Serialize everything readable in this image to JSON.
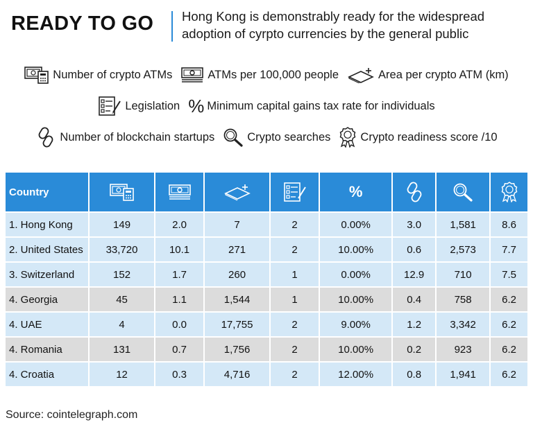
{
  "header": {
    "title": "READY TO GO",
    "subtitle": "Hong Kong is demonstrably ready for the widespread adoption of cyrpto currencies by the general public"
  },
  "legend": {
    "atms": "Number of crypto ATMs",
    "atms_per_100k": "ATMs per 100,000 people",
    "area": "Area per crypto ATM (km)",
    "legislation": "Legislation",
    "tax_symbol": "%",
    "tax": "Minimum capital gains tax rate for individuals",
    "startups": "Number of blockchain startups",
    "searches": "Crypto searches",
    "score": "Crypto readiness score /10"
  },
  "icons": [
    "atm-icon",
    "banknote-icon",
    "area-plane-icon",
    "checklist-icon",
    "percent-icon",
    "chain-link-icon",
    "magnifier-icon",
    "award-ribbon-icon"
  ],
  "colors": {
    "header_blue": "#2a8bd8",
    "row_blue": "#d4e8f7",
    "row_grey": "#dcdcdc"
  },
  "chart_data": {
    "type": "table",
    "columns": [
      "Country",
      "Number of crypto ATMs",
      "ATMs per 100,000 people",
      "Area per crypto ATM (km)",
      "Legislation",
      "Minimum capital gains tax rate for individuals",
      "Number of blockchain startups",
      "Crypto searches",
      "Crypto readiness score /10"
    ],
    "header_label": "Country",
    "tax_header_symbol": "%",
    "rows": [
      [
        "1. Hong Kong",
        "149",
        "2.0",
        "7",
        "2",
        "0.00%",
        "3.0",
        "1,581",
        "8.6"
      ],
      [
        "2. United States",
        "33,720",
        "10.1",
        "271",
        "2",
        "10.00%",
        "0.6",
        "2,573",
        "7.7"
      ],
      [
        "3. Switzerland",
        "152",
        "1.7",
        "260",
        "1",
        "0.00%",
        "12.9",
        "710",
        "7.5"
      ],
      [
        "4. Georgia",
        "45",
        "1.1",
        "1,544",
        "1",
        "10.00%",
        "0.4",
        "758",
        "6.2"
      ],
      [
        "4. UAE",
        "4",
        "0.0",
        "17,755",
        "2",
        "9.00%",
        "1.2",
        "3,342",
        "6.2"
      ],
      [
        "4. Romania",
        "131",
        "0.7",
        "1,756",
        "2",
        "10.00%",
        "0.2",
        "923",
        "6.2"
      ],
      [
        "4. Croatia",
        "12",
        "0.3",
        "4,716",
        "2",
        "12.00%",
        "0.8",
        "1,941",
        "6.2"
      ]
    ],
    "row_shading": [
      "blue",
      "blue",
      "blue",
      "grey",
      "blue",
      "grey",
      "blue"
    ]
  },
  "footer": {
    "source": "Source: cointelegraph.com"
  }
}
